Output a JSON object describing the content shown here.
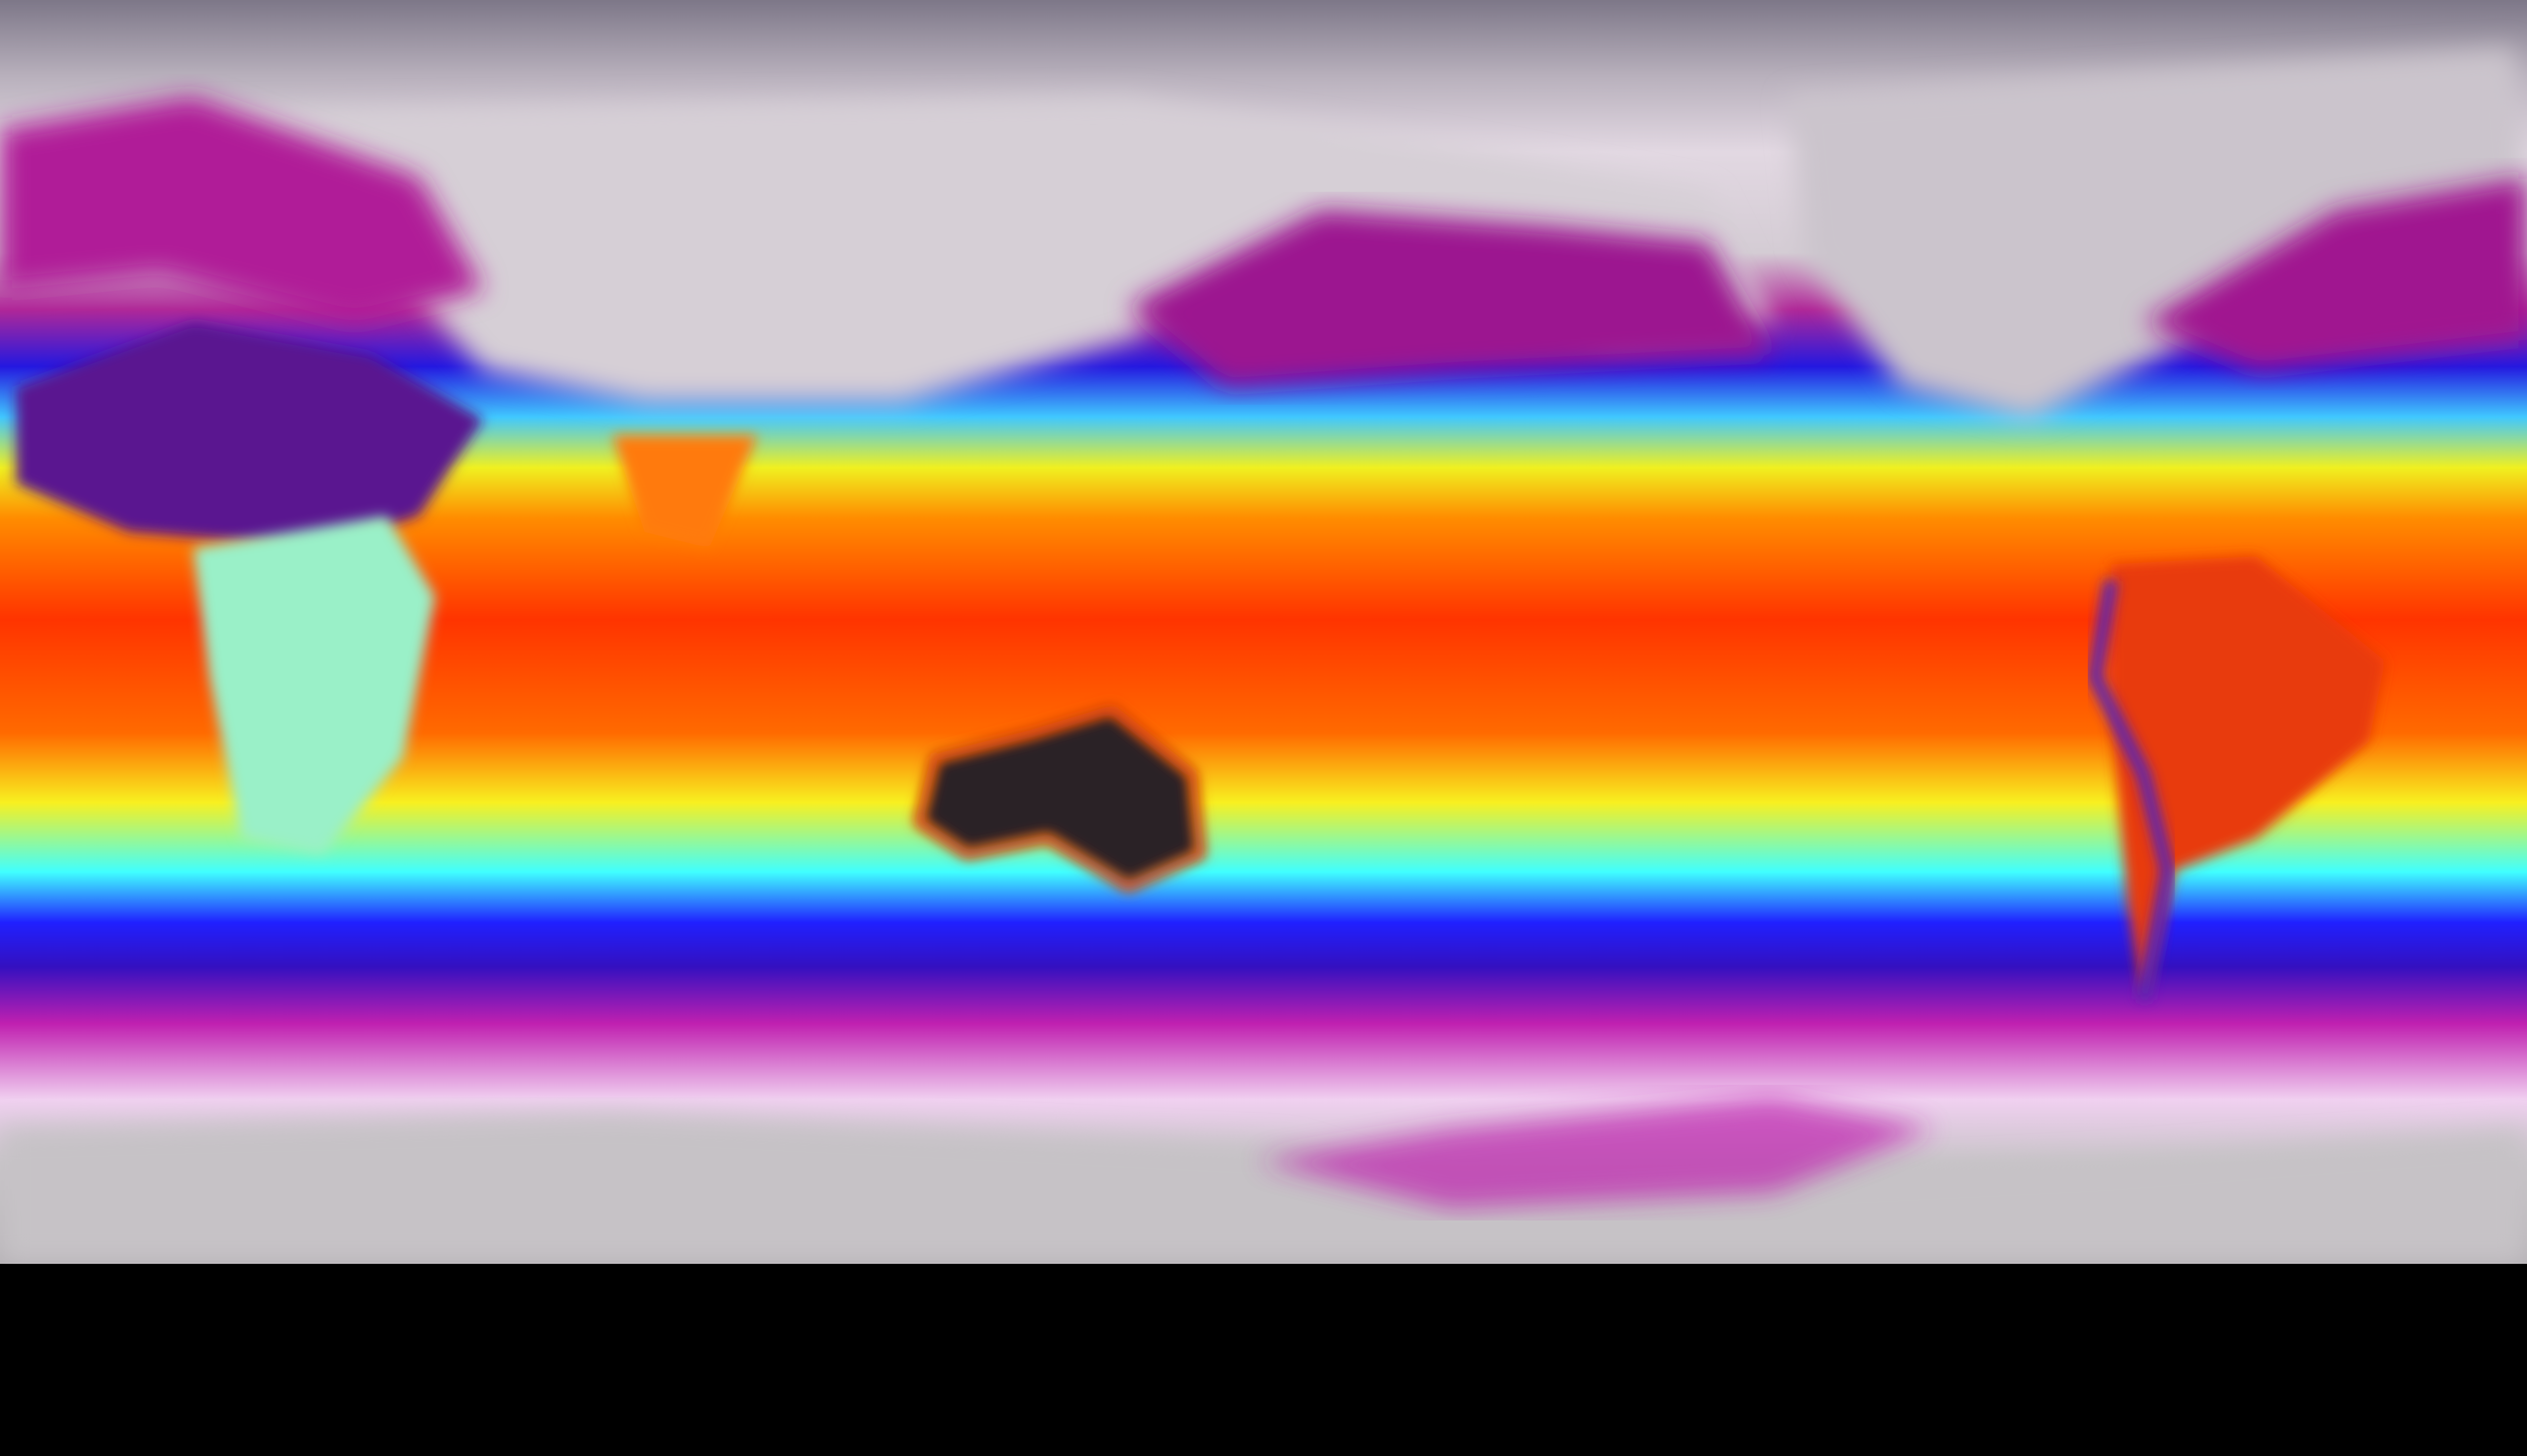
{
  "map": {
    "projection": "equirectangular",
    "colormap": [
      "#7d7788",
      "#e6dde6",
      "#a01890",
      "#2020e0",
      "#40c0ff",
      "#f0f020",
      "#ff8000",
      "#ff3000",
      "#2a2426"
    ]
  }
}
